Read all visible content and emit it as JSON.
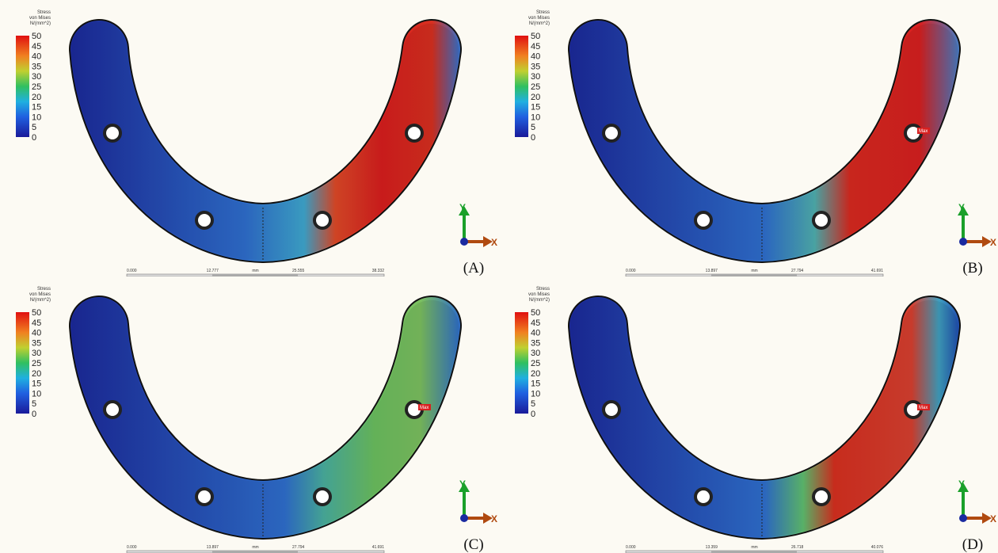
{
  "panels": [
    {
      "label": "(A)",
      "legend": {
        "title": [
          "Stress",
          "von Mises",
          "N/(mm^2)"
        ],
        "ticks": [
          50,
          45,
          40,
          35,
          30,
          25,
          20,
          15,
          10,
          5,
          0
        ]
      },
      "scale": [
        "0.000",
        "12.777",
        "mm",
        "25.555",
        "38.332"
      ],
      "axes": [
        "Y",
        "X"
      ]
    },
    {
      "label": "(B)",
      "legend": {
        "title": [
          "Stress",
          "von Mises",
          "N/(mm^2)"
        ],
        "ticks": [
          50,
          45,
          40,
          35,
          30,
          25,
          20,
          15,
          10,
          5,
          0
        ]
      },
      "scale": [
        "0.000",
        "13.897",
        "mm",
        "27.794",
        "41.691"
      ],
      "axes": [
        "Y",
        "X"
      ],
      "max_tag": "Max"
    },
    {
      "label": "(C)",
      "legend": {
        "title": [
          "Stress",
          "von Mises",
          "N/(mm^2)"
        ],
        "ticks": [
          50,
          45,
          40,
          35,
          30,
          25,
          20,
          15,
          10,
          5,
          0
        ]
      },
      "scale": [
        "0.000",
        "13.897",
        "mm",
        "27.794",
        "41.691"
      ],
      "axes": [
        "Y",
        "X"
      ],
      "max_tag": "Max"
    },
    {
      "label": "(D)",
      "legend": {
        "title": [
          "Stress",
          "von Mises",
          "N/(mm^2)"
        ],
        "ticks": [
          50,
          45,
          40,
          35,
          30,
          25,
          20,
          15,
          10,
          5,
          0
        ]
      },
      "scale": [
        "0.000",
        "13.359",
        "mm",
        "26.718",
        "40.076"
      ],
      "axes": [
        "Y",
        "X"
      ],
      "max_tag": "Max"
    }
  ]
}
